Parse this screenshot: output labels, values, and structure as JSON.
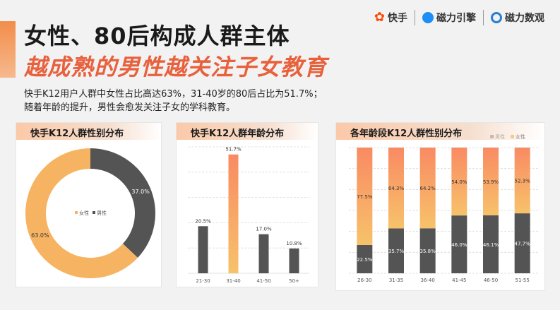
{
  "header": {
    "title_line1": "女性、80后构成人群主体",
    "title_line2": "越成熟的男性越关注子女教育",
    "desc_line1": "快手K12用户人群中女性占比高达63%，31-40岁的80后占比为51.7%；",
    "desc_line2": "随着年龄的提升，男性会愈发关注子女的学科教育。"
  },
  "logos": {
    "kuaishou": "快手",
    "cili_yinqing": "磁力引擎",
    "cili_shuguan": "磁力数观"
  },
  "colors": {
    "female": "#f6b463",
    "male": "#545454",
    "bar_grad_top": "#f98a63",
    "bar_grad_bottom": "#f7c26a"
  },
  "chart_data": [
    {
      "type": "pie",
      "title": "快手K12人群性别分布",
      "slices": [
        {
          "name": "女性",
          "value": 63.0,
          "label": "63.0%"
        },
        {
          "name": "男性",
          "value": 37.0,
          "label": "37.0%"
        }
      ],
      "legend": [
        "女性",
        "男性"
      ]
    },
    {
      "type": "bar",
      "title": "快手K12人群年龄分布",
      "categories": [
        "21-30",
        "31-40",
        "41-50",
        "50+"
      ],
      "values": [
        20.5,
        51.7,
        17.0,
        10.8
      ],
      "labels": [
        "20.5%",
        "51.7%",
        "17.0%",
        "10.8%"
      ],
      "highlight_index": 1,
      "ylim": [
        0,
        55
      ]
    },
    {
      "type": "bar",
      "stacked": true,
      "title": "各年龄段K12人群性别分布",
      "categories": [
        "26-30",
        "31-35",
        "36-40",
        "41-45",
        "46-50",
        "51-55"
      ],
      "series": [
        {
          "name": "男性",
          "values": [
            22.5,
            35.7,
            35.8,
            46.0,
            46.1,
            47.7
          ],
          "labels": [
            "22.5%",
            "35.7%",
            "35.8%",
            "46.0%",
            "46.1%",
            "47.7%"
          ]
        },
        {
          "name": "女性",
          "values": [
            77.5,
            64.3,
            64.2,
            54.0,
            53.9,
            52.3
          ],
          "labels": [
            "77.5%",
            "64.3%",
            "64.2%",
            "54.0%",
            "53.9%",
            "52.3%"
          ]
        }
      ],
      "legend": [
        "男性",
        "女性"
      ],
      "legend_position": "top-right",
      "ylim": [
        0,
        100
      ]
    }
  ]
}
